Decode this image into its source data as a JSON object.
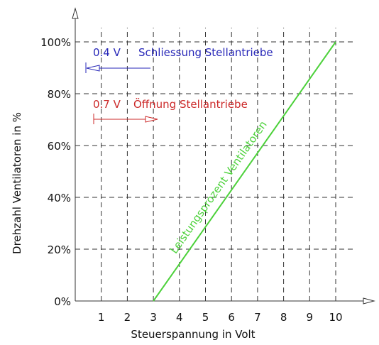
{
  "chart_data": {
    "type": "line",
    "xlabel": "Steuerspannung in Volt",
    "ylabel": "Drehzahl Ventilatoren in %",
    "x_ticks": [
      1,
      2,
      3,
      4,
      5,
      6,
      7,
      8,
      9,
      10
    ],
    "y_ticks": [
      0,
      20,
      40,
      60,
      80,
      100
    ],
    "y_tick_labels": [
      "0%",
      "20%",
      "40%",
      "60%",
      "80%",
      "100%"
    ],
    "xlim": [
      0,
      10
    ],
    "ylim": [
      0,
      100
    ],
    "grid": true,
    "series": [
      {
        "name": "Leistungsprozent Ventilatoren",
        "color": "#4cd13a",
        "x": [
          3,
          10
        ],
        "y": [
          0,
          100
        ]
      }
    ],
    "annotations": [
      {
        "label_value": "0.4 V",
        "label_text": "Schliessung Stellantriebe",
        "voltage": 0.4,
        "arrow": "left",
        "color": "#2727b8"
      },
      {
        "label_value": "0.7 V",
        "label_text": "Öffnung Stellantriebe",
        "voltage": 0.7,
        "arrow": "right",
        "color": "#cc2a2a"
      }
    ]
  }
}
